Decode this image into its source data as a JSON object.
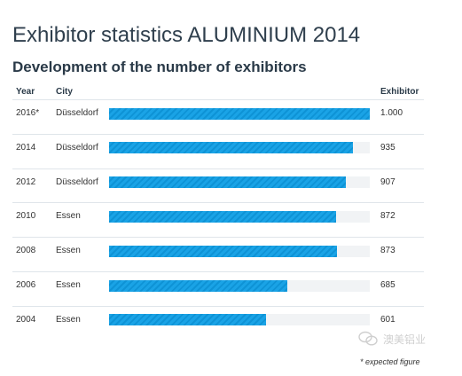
{
  "page": {
    "title": "Exhibitor statistics ALUMINIUM 2014",
    "subtitle": "Development of the number of exhibitors",
    "footnote": "* expected figure",
    "watermark": "澳美铝业"
  },
  "colors": {
    "bar": "#1aa3e6",
    "track": "#f1f3f5",
    "title": "#2f3f4d"
  },
  "chart_data": {
    "type": "bar",
    "orientation": "horizontal",
    "columns": [
      "Year",
      "City",
      "Exhibitor"
    ],
    "xlim": [
      0,
      1000
    ],
    "rows": [
      {
        "year": "2016*",
        "city": "Düsseldorf",
        "label": "1.000",
        "value": 1000
      },
      {
        "year": "2014",
        "city": "Düsseldorf",
        "label": "935",
        "value": 935
      },
      {
        "year": "2012",
        "city": "Düsseldorf",
        "label": "907",
        "value": 907
      },
      {
        "year": "2010",
        "city": "Essen",
        "label": "872",
        "value": 872
      },
      {
        "year": "2008",
        "city": "Essen",
        "label": "873",
        "value": 873
      },
      {
        "year": "2006",
        "city": "Essen",
        "label": "685",
        "value": 685
      },
      {
        "year": "2004",
        "city": "Essen",
        "label": "601",
        "value": 601
      }
    ]
  }
}
